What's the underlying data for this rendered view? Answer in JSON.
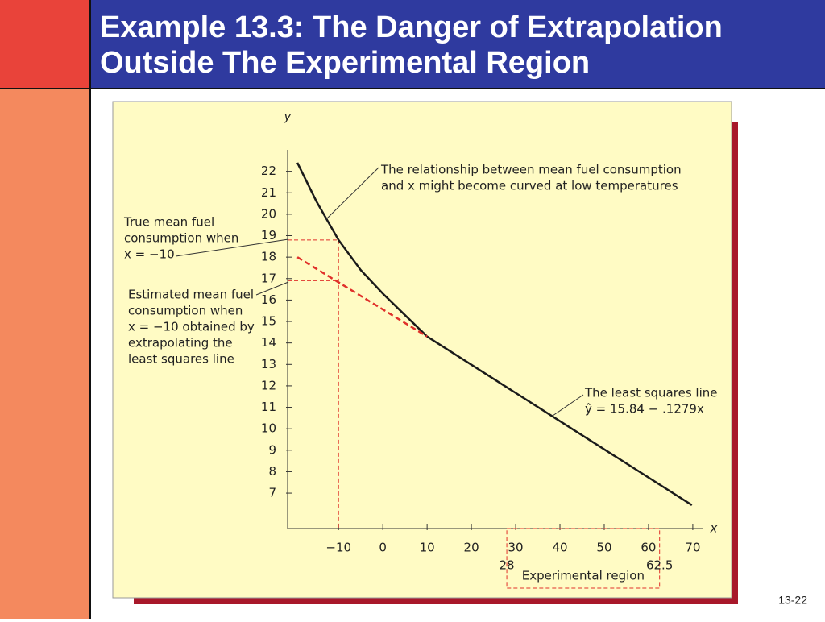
{
  "slide": {
    "title_lines": [
      "Example 13.3: The Danger of Extrapolation",
      "Outside The Experimental Region"
    ],
    "page_number": "13-22"
  },
  "chart_data": {
    "type": "line",
    "x_label": "x",
    "y_label": "y",
    "xlim": [
      -21.5,
      72.2
    ],
    "ylim": [
      5.35,
      23
    ],
    "xticks": [
      {
        "value": -10,
        "label": "−10"
      },
      0,
      10,
      20,
      30,
      40,
      50,
      60,
      70
    ],
    "yticks": [
      7,
      8,
      9,
      10,
      11,
      12,
      13,
      14,
      15,
      16,
      17,
      18,
      19,
      20,
      21,
      22
    ],
    "series": [
      {
        "color": "#1a1a1a",
        "dashed": false,
        "x": [
          -19.3,
          -15,
          -10,
          -5,
          0,
          5,
          10
        ],
        "values": [
          22.4,
          20.6,
          18.8,
          17.4,
          16.3,
          15.3,
          14.3
        ]
      },
      {
        "color": "#1a1a1a",
        "dashed": false,
        "x": [
          10,
          69.8
        ],
        "values": [
          14.3,
          6.44
        ]
      },
      {
        "color": "#e0302a",
        "dashed": true,
        "x": [
          -19.3,
          10
        ],
        "values": [
          18.0,
          14.3
        ]
      }
    ],
    "reference_points": [
      {
        "x": -10,
        "y": 18.8
      },
      {
        "x": -10,
        "y": 16.9
      }
    ],
    "experimental_region": {
      "label": "Experimental region",
      "range": [
        28,
        62.5
      ]
    },
    "annotations": [
      {
        "lines": [
          "The relationship between mean fuel consumption",
          "and x might become curved at low temperatures"
        ]
      },
      {
        "lines": [
          "True mean fuel",
          "consumption when",
          "x = −10"
        ]
      },
      {
        "lines": [
          "Estimated mean fuel",
          "consumption when",
          "x = −10 obtained by",
          "extrapolating the",
          "least squares line"
        ]
      },
      {
        "lines": [
          "The least squares line",
          "ŷ = 15.84 − .1279x"
        ]
      }
    ]
  }
}
